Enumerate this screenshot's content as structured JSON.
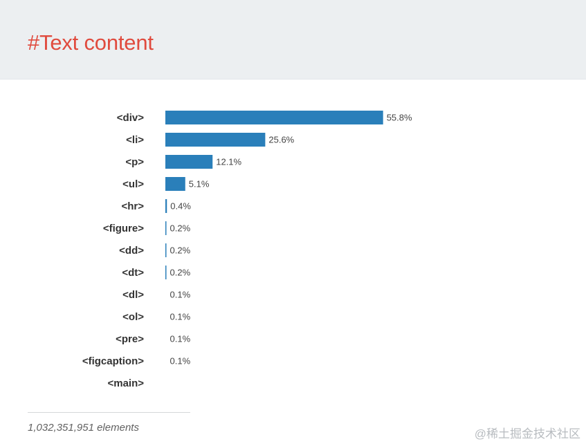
{
  "header": {
    "title": "#Text content"
  },
  "chart_data": {
    "type": "bar",
    "orientation": "horizontal",
    "categories": [
      "<div>",
      "<li>",
      "<p>",
      "<ul>",
      "<hr>",
      "<figure>",
      "<dd>",
      "<dt>",
      "<dl>",
      "<ol>",
      "<pre>",
      "<figcaption>",
      "<main>"
    ],
    "values": [
      55.8,
      25.6,
      12.1,
      5.1,
      0.4,
      0.2,
      0.2,
      0.2,
      0.1,
      0.1,
      0.1,
      0.1,
      null
    ],
    "value_labels": [
      "55.8%",
      "25.6%",
      "12.1%",
      "5.1%",
      "0.4%",
      "0.2%",
      "0.2%",
      "0.2%",
      "0.1%",
      "0.1%",
      "0.1%",
      "0.1%",
      ""
    ],
    "bar_color": "#2a7fba",
    "xlim": [
      0,
      100
    ],
    "grid": false,
    "legend": "none"
  },
  "footer": {
    "count": "1,032,351,951 elements"
  },
  "watermark": "@稀土掘金技术社区"
}
